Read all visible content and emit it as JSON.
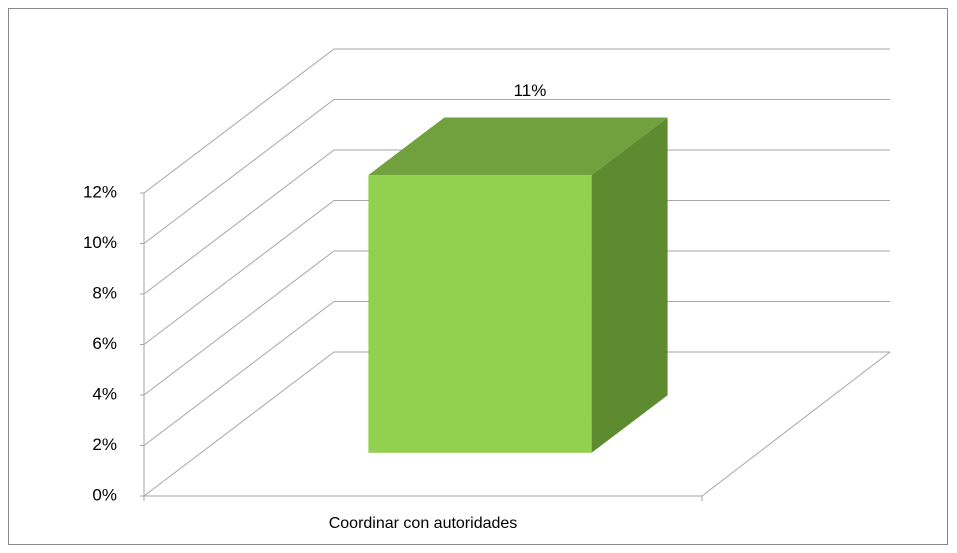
{
  "chart_data": {
    "type": "bar",
    "categories": [
      "Coordinar con autoridades"
    ],
    "values": [
      11
    ],
    "value_labels": [
      "11%"
    ],
    "colors": {
      "front": "#92d050",
      "top": "#71a03e",
      "side": "#5e8a30"
    },
    "ylim": [
      0,
      12
    ],
    "yticks": [
      {
        "value": 0,
        "label": "0%"
      },
      {
        "value": 2,
        "label": "2%"
      },
      {
        "value": 4,
        "label": "4%"
      },
      {
        "value": 6,
        "label": "6%"
      },
      {
        "value": 8,
        "label": "8%"
      },
      {
        "value": 10,
        "label": "10%"
      },
      {
        "value": 12,
        "label": "12%"
      }
    ],
    "grid": true
  }
}
